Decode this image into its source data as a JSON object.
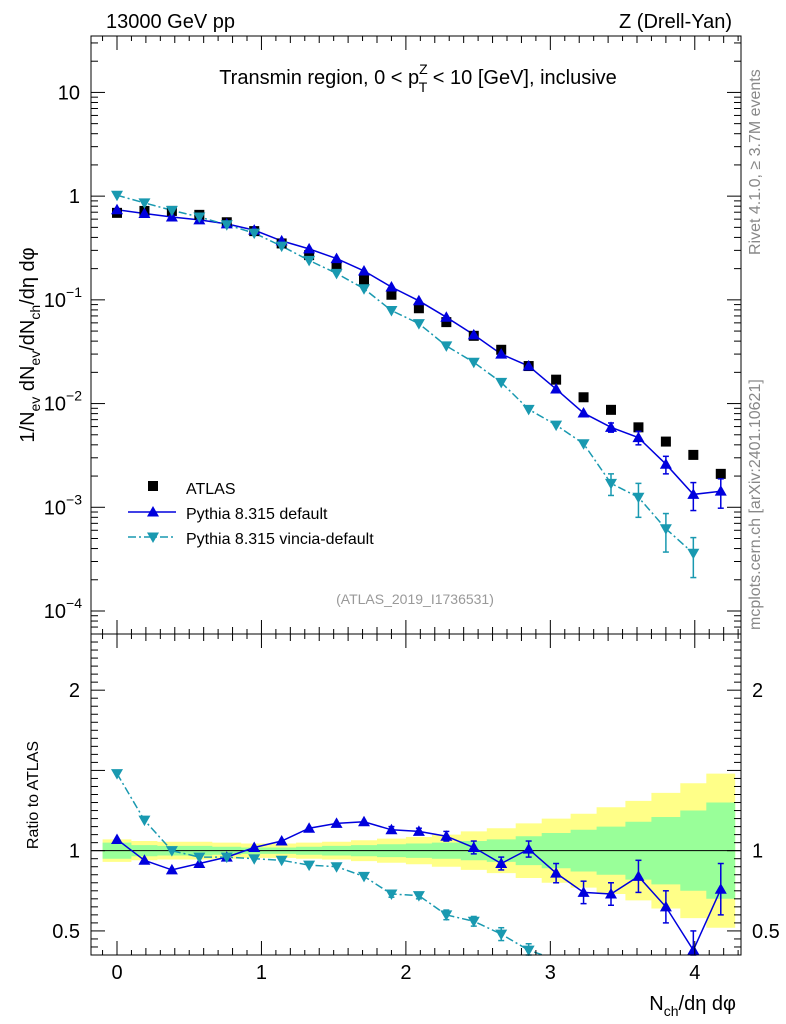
{
  "header": {
    "left": "13000 GeV pp",
    "right": "Z (Drell-Yan)"
  },
  "side_labels": {
    "rivet": "Rivet 4.1.0, ≥ 3.7M events",
    "mcplots": "mcplots.cern.ch [arXiv:2401.10621]"
  },
  "watermark": "(ATLAS_2019_I1736531)",
  "colors": {
    "atlas": "#000000",
    "default": "#0000dd",
    "vincia": "#1999b0",
    "band_inner": "#99ff99",
    "band_outer": "#ffff88"
  },
  "legend": {
    "atlas": "ATLAS",
    "default": "Pythia 8.315 default",
    "vincia": "Pythia 8.315 vincia-default"
  },
  "chart_data": [
    {
      "type": "scatter",
      "panel": "main",
      "title": "Transmin region, 0 < pTZ < 10 [GeV], inclusive",
      "title_parts": {
        "pre": "Transmin region, 0 < p",
        "sup": "Z",
        "sub": "T",
        "post": " < 10 [GeV], inclusive"
      },
      "xlabel": "Nch/dη dφ",
      "ylabel": "1/Nev dNev/dNch/dη dφ",
      "yscale": "log",
      "xlim": [
        -0.18,
        4.32
      ],
      "ylim": [
        6e-05,
        35
      ],
      "xticks": [
        "0",
        "1",
        "2",
        "3",
        "4"
      ],
      "yticks": [
        {
          "value": 0.0001,
          "base": "10",
          "exp": "−4"
        },
        {
          "value": 0.001,
          "base": "10",
          "exp": "−3"
        },
        {
          "value": 0.01,
          "base": "10",
          "exp": "−2"
        },
        {
          "value": 0.1,
          "base": "10",
          "exp": "−1"
        },
        {
          "value": 1,
          "base": "1",
          "exp": ""
        },
        {
          "value": 10,
          "base": "10",
          "exp": ""
        }
      ],
      "x": [
        0.0,
        0.19,
        0.38,
        0.57,
        0.76,
        0.95,
        1.14,
        1.33,
        1.52,
        1.71,
        1.9,
        2.09,
        2.28,
        2.47,
        2.66,
        2.85,
        3.04,
        3.23,
        3.42,
        3.61,
        3.8,
        3.99,
        4.18
      ],
      "series": [
        {
          "name": "ATLAS",
          "key": "atlas",
          "marker": "square",
          "values": [
            0.69,
            0.72,
            0.72,
            0.66,
            0.56,
            0.46,
            0.35,
            0.27,
            0.21,
            0.155,
            0.112,
            0.083,
            0.061,
            0.045,
            0.033,
            0.023,
            0.017,
            0.0115,
            0.0087,
            0.0059,
            0.0043,
            0.0032,
            0.0021
          ],
          "errors": [
            0,
            0,
            0,
            0,
            0,
            0,
            0,
            0,
            0,
            0,
            0,
            0,
            0,
            0,
            0,
            0,
            0,
            0,
            0,
            0,
            0,
            0,
            0
          ]
        },
        {
          "name": "Pythia 8.315 default",
          "key": "default",
          "marker": "triangle-up",
          "values": [
            0.74,
            0.68,
            0.63,
            0.59,
            0.54,
            0.47,
            0.37,
            0.31,
            0.25,
            0.19,
            0.133,
            0.098,
            0.068,
            0.046,
            0.03,
            0.023,
            0.0138,
            0.0081,
            0.0059,
            0.0047,
            0.0026,
            0.00133,
            0.00143
          ],
          "errors": [
            0,
            0,
            0,
            0,
            0,
            0,
            0,
            0,
            0,
            0,
            0,
            0,
            0,
            0,
            0,
            0,
            0,
            0,
            0.0006,
            0.0007,
            0.0005,
            0.0004,
            0.00045
          ]
        },
        {
          "name": "Pythia 8.315 vincia-default",
          "key": "vincia",
          "marker": "triangle-down",
          "values": [
            1.02,
            0.86,
            0.73,
            0.63,
            0.53,
            0.44,
            0.33,
            0.24,
            0.18,
            0.128,
            0.079,
            0.059,
            0.036,
            0.025,
            0.016,
            0.0088,
            0.0062,
            0.0041,
            0.0017,
            0.00125,
            0.00062,
            0.00036,
            null
          ],
          "errors": [
            0,
            0,
            0,
            0,
            0,
            0,
            0,
            0,
            0,
            0,
            0,
            0,
            0,
            0,
            0,
            0,
            0,
            0,
            0.0004,
            0.00045,
            0.00025,
            0.00015,
            0
          ]
        }
      ]
    },
    {
      "type": "line",
      "panel": "ratio",
      "ylabel": "Ratio to ATLAS",
      "xlim": [
        -0.18,
        4.32
      ],
      "ylim": [
        0.35,
        2.35
      ],
      "yticks": [
        "0.5",
        "1",
        "2"
      ],
      "x": [
        0.0,
        0.19,
        0.38,
        0.57,
        0.76,
        0.95,
        1.14,
        1.33,
        1.52,
        1.71,
        1.9,
        2.09,
        2.28,
        2.47,
        2.66,
        2.85,
        3.04,
        3.23,
        3.42,
        3.61,
        3.8,
        3.99,
        4.18
      ],
      "bin_edges": [
        -0.1,
        0.1,
        0.28,
        0.48,
        0.66,
        0.86,
        1.04,
        1.24,
        1.42,
        1.62,
        1.8,
        2.0,
        2.18,
        2.38,
        2.56,
        2.76,
        2.94,
        3.14,
        3.32,
        3.52,
        3.7,
        3.9,
        4.08,
        4.28
      ],
      "band_inner": [
        0.05,
        0.035,
        0.03,
        0.03,
        0.025,
        0.02,
        0.02,
        0.025,
        0.03,
        0.035,
        0.04,
        0.045,
        0.05,
        0.06,
        0.07,
        0.09,
        0.11,
        0.13,
        0.15,
        0.18,
        0.21,
        0.25,
        0.3
      ],
      "band_outer": [
        0.07,
        0.06,
        0.055,
        0.055,
        0.05,
        0.045,
        0.045,
        0.05,
        0.055,
        0.065,
        0.075,
        0.085,
        0.1,
        0.12,
        0.14,
        0.17,
        0.2,
        0.23,
        0.27,
        0.31,
        0.36,
        0.42,
        0.48
      ],
      "series": [
        {
          "name": "Pythia 8.315 default",
          "key": "default",
          "marker": "triangle-up",
          "values": [
            1.07,
            0.94,
            0.88,
            0.92,
            0.96,
            1.02,
            1.06,
            1.14,
            1.17,
            1.18,
            1.13,
            1.12,
            1.09,
            1.02,
            0.92,
            1.01,
            0.86,
            0.74,
            0.73,
            0.84,
            0.65,
            0.38,
            0.76
          ],
          "errors": [
            0,
            0,
            0,
            0,
            0,
            0,
            0,
            0,
            0,
            0,
            0.02,
            0.02,
            0.03,
            0.04,
            0.04,
            0.05,
            0.06,
            0.07,
            0.07,
            0.1,
            0.1,
            0.12,
            0.16
          ]
        },
        {
          "name": "Pythia 8.315 vincia-default",
          "key": "vincia",
          "marker": "triangle-down",
          "values": [
            1.48,
            1.19,
            1.0,
            0.96,
            0.96,
            0.95,
            0.94,
            0.91,
            0.9,
            0.84,
            0.73,
            0.72,
            0.6,
            0.56,
            0.48,
            0.38,
            null,
            null,
            null,
            null,
            null,
            null,
            null
          ],
          "errors": [
            0,
            0,
            0,
            0,
            0,
            0,
            0,
            0,
            0,
            0,
            0.02,
            0.02,
            0.03,
            0.03,
            0.04,
            0.04,
            0,
            0,
            0,
            0,
            0,
            0,
            0
          ]
        }
      ]
    }
  ]
}
